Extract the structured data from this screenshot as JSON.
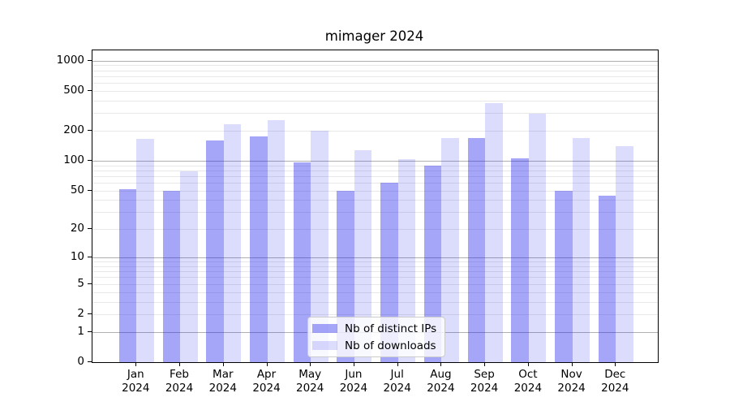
{
  "chart_data": {
    "type": "bar",
    "title": "mimager 2024",
    "categories": [
      "Jan 2024",
      "Feb 2024",
      "Mar 2024",
      "Apr 2024",
      "May 2024",
      "Jun 2024",
      "Jul 2024",
      "Aug 2024",
      "Sep 2024",
      "Oct 2024",
      "Nov 2024",
      "Dec 2024"
    ],
    "series": [
      {
        "name": "Nb of distinct IPs",
        "color": "rgba(32,32,238,0.40)",
        "values": [
          52,
          50,
          160,
          175,
          97,
          50,
          60,
          90,
          170,
          105,
          50,
          44
        ]
      },
      {
        "name": "Nb of downloads",
        "color": "rgba(32,32,238,0.155)",
        "values": [
          165,
          78,
          230,
          255,
          198,
          128,
          104,
          170,
          380,
          295,
          170,
          140
        ]
      }
    ],
    "xlabel": "",
    "ylabel": "",
    "yscale": "log1p",
    "yticks": [
      0,
      1,
      2,
      5,
      10,
      20,
      50,
      100,
      200,
      500,
      1000
    ],
    "major_gridlines": [
      1,
      10,
      100,
      1000
    ],
    "ylim": [
      0,
      1230
    ],
    "grid": true,
    "legend_position": "lower center",
    "colors": {
      "major_grid": "#b0b0b0",
      "minor_grid": "#e8e8e8",
      "spine": "#000000",
      "text": "#000000",
      "legend_border": "#cccccc",
      "legend_bg": "rgba(255,255,255,0.8)"
    }
  }
}
